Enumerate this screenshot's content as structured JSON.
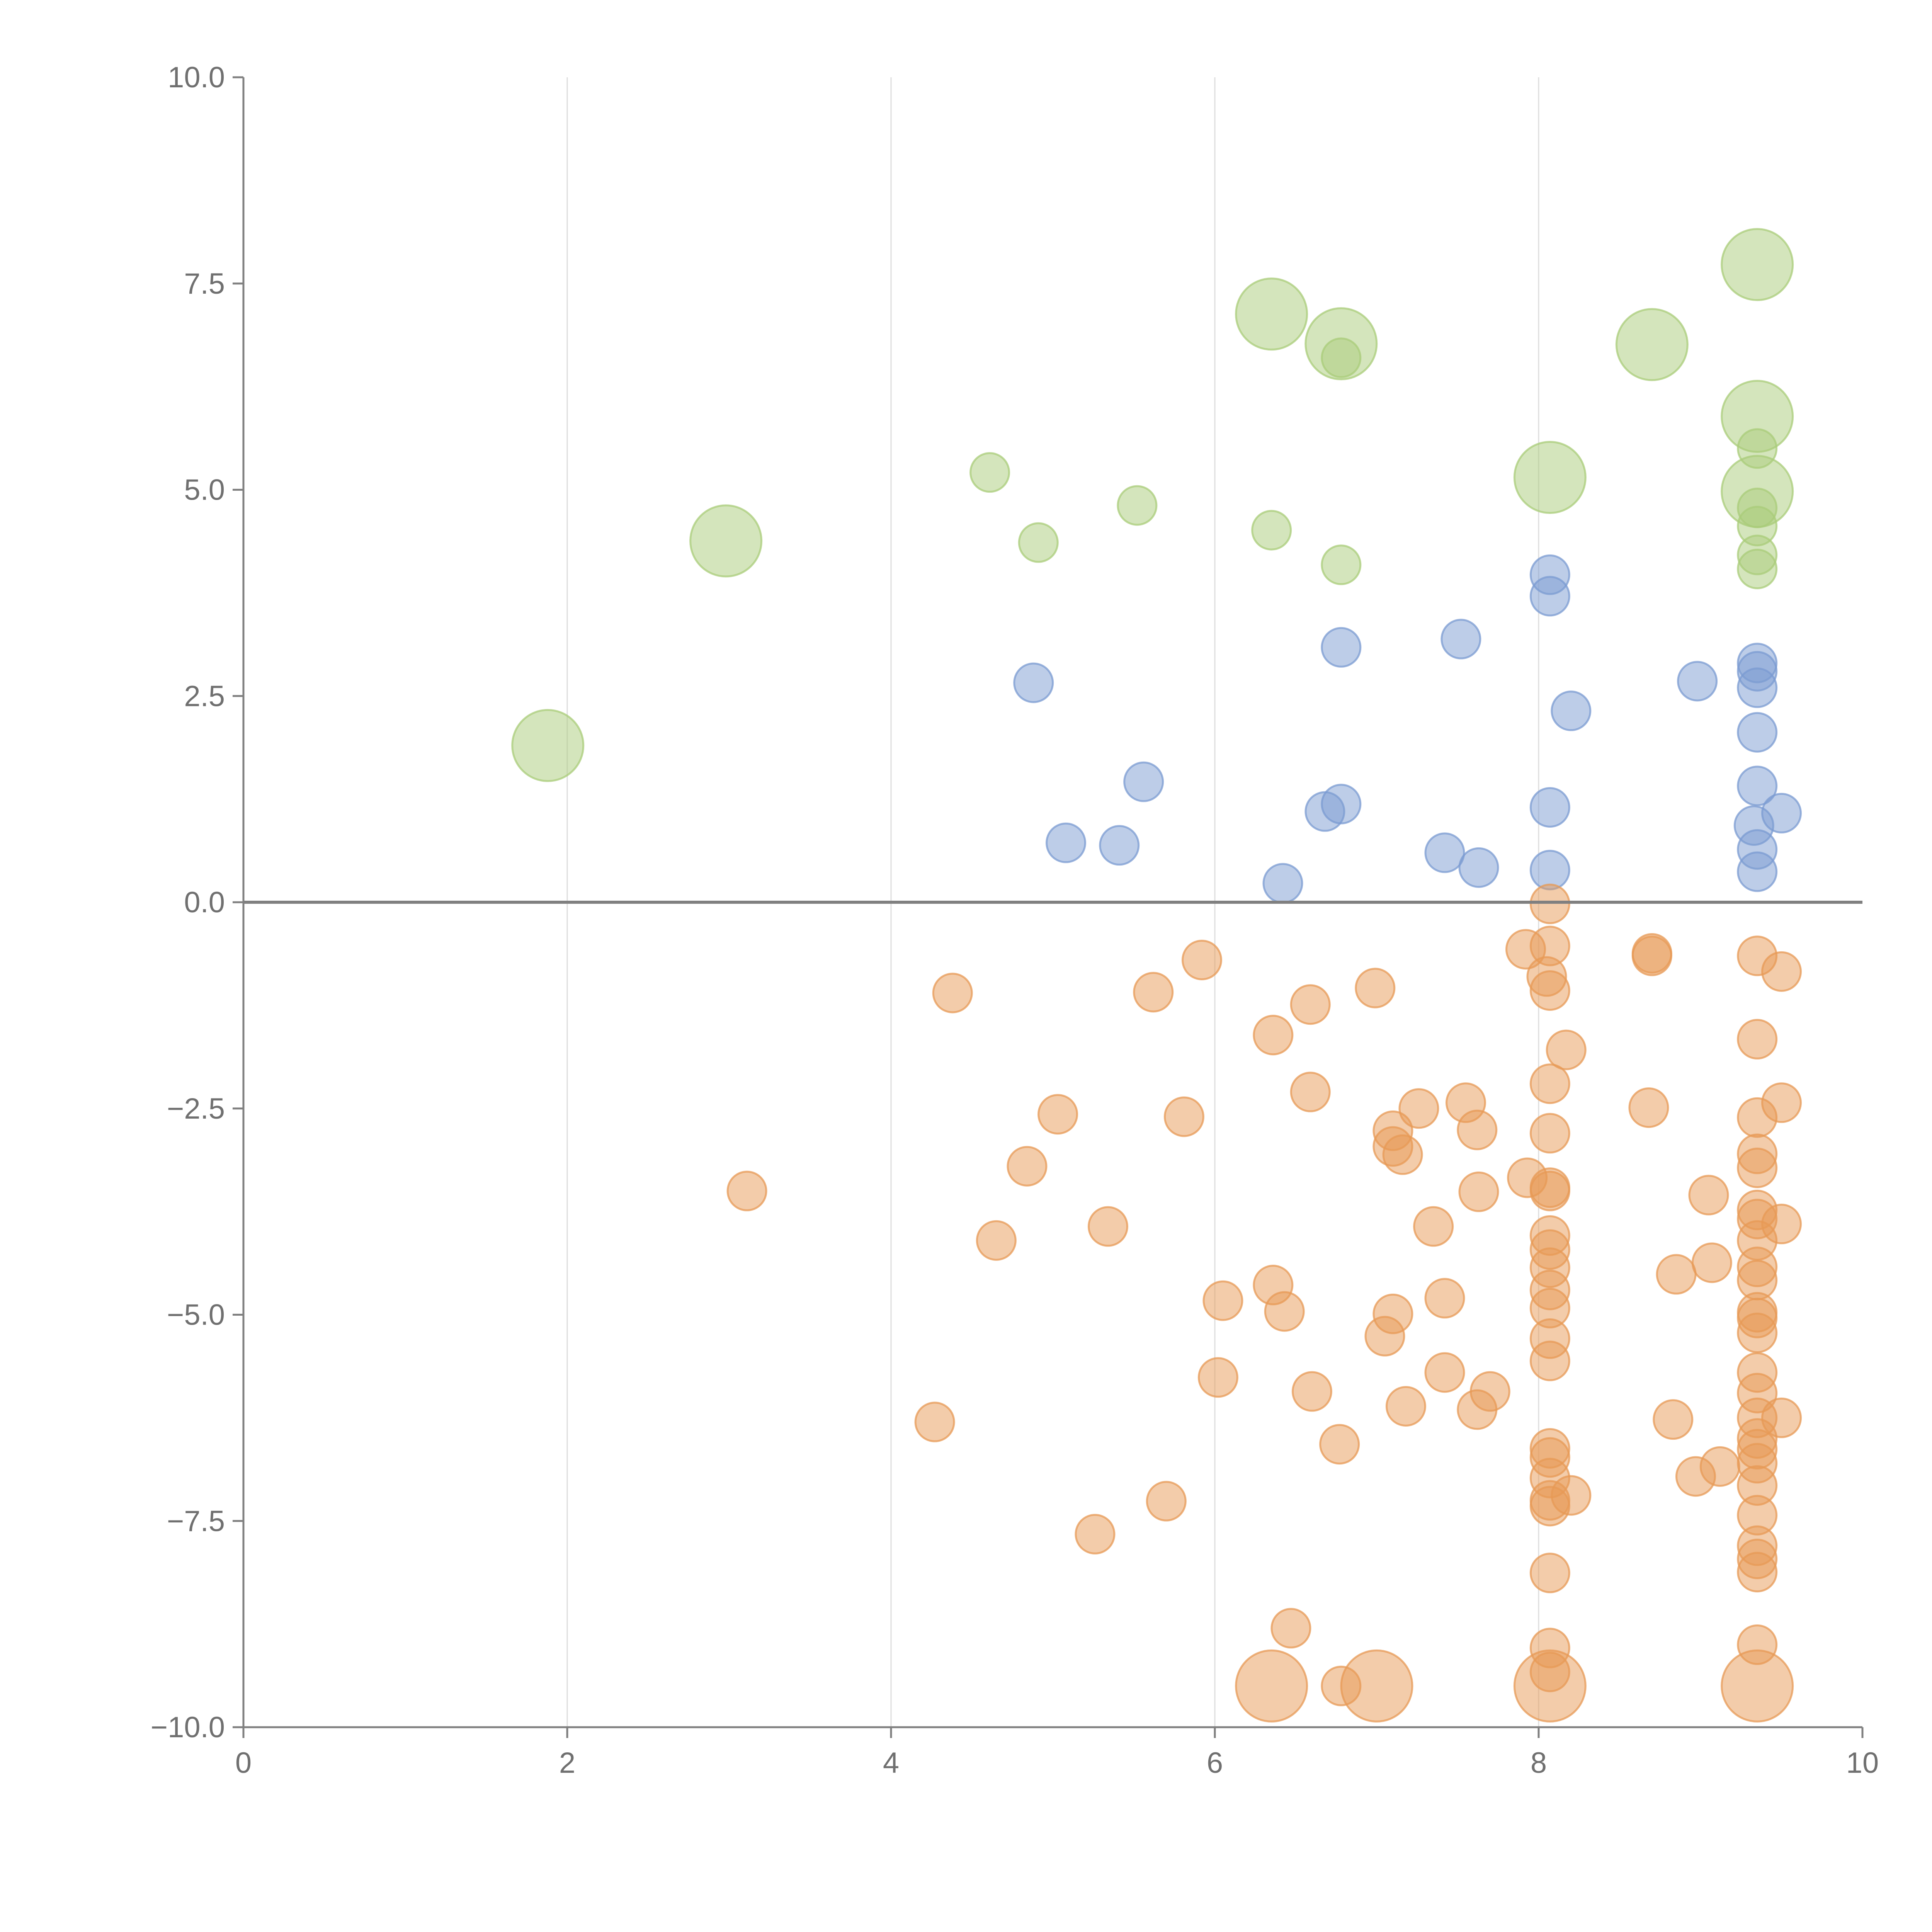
{
  "chart_data": {
    "type": "scatter",
    "title": "",
    "xlabel": "",
    "ylabel": "",
    "xlim": [
      0,
      10
    ],
    "ylim": [
      -10,
      10
    ],
    "x_ticks": [
      "0",
      "2",
      "4",
      "6",
      "8",
      "10"
    ],
    "y_ticks": [
      "10.0",
      "7.5",
      "5.0",
      "2.5",
      "0.0",
      "−2.5",
      "−5.0",
      "−7.5",
      "−10.0"
    ],
    "x_grid": true,
    "y_grid": false,
    "zero_line": true,
    "colors": {
      "green": "#a9cc7a",
      "blue": "#7b9bd1",
      "orange": "#e79a55"
    },
    "series": [
      {
        "color": "green",
        "points": [
          [
            1.88,
            1.9,
            "large"
          ],
          [
            2.98,
            4.38,
            "large"
          ],
          [
            4.61,
            5.21,
            "small"
          ],
          [
            4.91,
            4.36,
            "small"
          ],
          [
            5.52,
            4.81,
            "small"
          ],
          [
            6.35,
            4.51,
            "small"
          ],
          [
            6.35,
            7.13,
            "large"
          ],
          [
            6.78,
            6.77,
            "large"
          ],
          [
            6.78,
            6.6,
            "small"
          ],
          [
            6.78,
            4.09,
            "small"
          ],
          [
            8.07,
            5.15,
            "large"
          ],
          [
            8.7,
            6.76,
            "large"
          ],
          [
            9.35,
            7.73,
            "large"
          ],
          [
            9.35,
            5.89,
            "large"
          ],
          [
            9.35,
            4.98,
            "large"
          ],
          [
            9.35,
            4.78,
            "small"
          ],
          [
            9.35,
            4.56,
            "small"
          ],
          [
            9.35,
            4.21,
            "small"
          ],
          [
            9.35,
            4.04,
            "small"
          ],
          [
            9.35,
            5.5,
            "small"
          ]
        ]
      },
      {
        "color": "blue",
        "points": [
          [
            4.88,
            2.66,
            "small"
          ],
          [
            5.08,
            0.72,
            "small"
          ],
          [
            5.41,
            0.69,
            "small"
          ],
          [
            5.56,
            1.46,
            "small"
          ],
          [
            6.42,
            0.23,
            "small"
          ],
          [
            6.68,
            1.1,
            "small"
          ],
          [
            6.78,
            1.19,
            "small"
          ],
          [
            6.78,
            3.09,
            "small"
          ],
          [
            7.42,
            0.6,
            "small"
          ],
          [
            7.52,
            3.19,
            "small"
          ],
          [
            7.63,
            0.42,
            "small"
          ],
          [
            8.07,
            3.97,
            "small"
          ],
          [
            8.07,
            3.71,
            "small"
          ],
          [
            8.07,
            1.15,
            "small"
          ],
          [
            8.07,
            0.39,
            "small"
          ],
          [
            8.2,
            2.32,
            "small"
          ],
          [
            8.98,
            2.68,
            "small"
          ],
          [
            9.35,
            2.9,
            "small"
          ],
          [
            9.35,
            2.8,
            "small"
          ],
          [
            9.35,
            2.6,
            "small"
          ],
          [
            9.35,
            2.06,
            "small"
          ],
          [
            9.35,
            1.41,
            "small"
          ],
          [
            9.33,
            0.93,
            "small"
          ],
          [
            9.35,
            0.64,
            "small"
          ],
          [
            9.35,
            0.37,
            "small"
          ],
          [
            9.5,
            1.08,
            "small"
          ]
        ]
      },
      {
        "color": "orange",
        "points": [
          [
            3.11,
            -3.5,
            "small"
          ],
          [
            4.27,
            -6.3,
            "small"
          ],
          [
            4.38,
            -1.1,
            "small"
          ],
          [
            4.65,
            -4.1,
            "small"
          ],
          [
            4.84,
            -3.2,
            "small"
          ],
          [
            5.03,
            -2.57,
            "small"
          ],
          [
            5.26,
            -7.66,
            "small"
          ],
          [
            5.34,
            -3.93,
            "small"
          ],
          [
            5.62,
            -1.09,
            "small"
          ],
          [
            5.7,
            -7.26,
            "small"
          ],
          [
            5.81,
            -2.6,
            "small"
          ],
          [
            5.92,
            -0.7,
            "small"
          ],
          [
            6.02,
            -5.76,
            "small"
          ],
          [
            6.05,
            -4.83,
            "small"
          ],
          [
            6.36,
            -1.61,
            "small"
          ],
          [
            6.36,
            -4.64,
            "small"
          ],
          [
            6.43,
            -4.96,
            "small"
          ],
          [
            6.35,
            -9.5,
            "large"
          ],
          [
            6.47,
            -8.8,
            "small"
          ],
          [
            6.59,
            -1.24,
            "small"
          ],
          [
            6.59,
            -2.3,
            "small"
          ],
          [
            6.6,
            -5.93,
            "small"
          ],
          [
            6.77,
            -6.57,
            "small"
          ],
          [
            6.78,
            -9.5,
            "small"
          ],
          [
            6.99,
            -1.04,
            "small"
          ],
          [
            7.0,
            -9.5,
            "large"
          ],
          [
            7.05,
            -5.26,
            "small"
          ],
          [
            7.1,
            -2.77,
            "small"
          ],
          [
            7.1,
            -2.96,
            "small"
          ],
          [
            7.1,
            -4.99,
            "small"
          ],
          [
            7.16,
            -3.06,
            "small"
          ],
          [
            7.18,
            -6.11,
            "small"
          ],
          [
            7.26,
            -2.5,
            "small"
          ],
          [
            7.35,
            -3.93,
            "small"
          ],
          [
            7.42,
            -4.8,
            "small"
          ],
          [
            7.42,
            -5.7,
            "small"
          ],
          [
            7.55,
            -2.43,
            "small"
          ],
          [
            7.62,
            -2.76,
            "small"
          ],
          [
            7.63,
            -3.51,
            "small"
          ],
          [
            7.62,
            -6.15,
            "small"
          ],
          [
            7.7,
            -5.93,
            "small"
          ],
          [
            7.92,
            -0.57,
            "small"
          ],
          [
            7.93,
            -3.34,
            "small"
          ],
          [
            8.07,
            -0.02,
            "small"
          ],
          [
            8.07,
            -0.53,
            "small"
          ],
          [
            8.05,
            -0.9,
            "small"
          ],
          [
            8.07,
            -1.07,
            "small"
          ],
          [
            8.07,
            -2.2,
            "small"
          ],
          [
            8.07,
            -2.8,
            "small"
          ],
          [
            8.07,
            -3.46,
            "small"
          ],
          [
            8.07,
            -3.5,
            "small"
          ],
          [
            8.07,
            -4.04,
            "small"
          ],
          [
            8.07,
            -4.21,
            "small"
          ],
          [
            8.07,
            -4.43,
            "small"
          ],
          [
            8.07,
            -4.7,
            "small"
          ],
          [
            8.07,
            -4.92,
            "small"
          ],
          [
            8.07,
            -5.29,
            "small"
          ],
          [
            8.07,
            -5.56,
            "small"
          ],
          [
            8.07,
            -6.62,
            "small"
          ],
          [
            8.07,
            -6.73,
            "small"
          ],
          [
            8.07,
            -6.98,
            "small"
          ],
          [
            8.07,
            -7.25,
            "small"
          ],
          [
            8.07,
            -7.32,
            "small"
          ],
          [
            8.07,
            -8.13,
            "small"
          ],
          [
            8.07,
            -9.04,
            "small"
          ],
          [
            8.07,
            -9.33,
            "small"
          ],
          [
            8.07,
            -9.5,
            "large"
          ],
          [
            8.17,
            -1.79,
            "small"
          ],
          [
            8.2,
            -7.19,
            "small"
          ],
          [
            8.7,
            -0.62,
            "small"
          ],
          [
            8.7,
            -0.65,
            "small"
          ],
          [
            8.68,
            -2.49,
            "small"
          ],
          [
            8.83,
            -6.27,
            "small"
          ],
          [
            8.85,
            -4.51,
            "small"
          ],
          [
            8.97,
            -6.96,
            "small"
          ],
          [
            9.05,
            -3.55,
            "small"
          ],
          [
            9.07,
            -4.37,
            "small"
          ],
          [
            9.12,
            -6.84,
            "small"
          ],
          [
            9.35,
            -0.65,
            "small"
          ],
          [
            9.35,
            -1.66,
            "small"
          ],
          [
            9.35,
            -2.61,
            "small"
          ],
          [
            9.35,
            -3.05,
            "small"
          ],
          [
            9.35,
            -3.22,
            "small"
          ],
          [
            9.35,
            -3.73,
            "small"
          ],
          [
            9.35,
            -3.84,
            "small"
          ],
          [
            9.35,
            -4.1,
            "small"
          ],
          [
            9.35,
            -4.42,
            "small"
          ],
          [
            9.35,
            -4.58,
            "small"
          ],
          [
            9.35,
            -4.97,
            "small"
          ],
          [
            9.35,
            -5.04,
            "small"
          ],
          [
            9.35,
            -5.22,
            "small"
          ],
          [
            9.35,
            -5.7,
            "small"
          ],
          [
            9.35,
            -5.95,
            "small"
          ],
          [
            9.35,
            -6.25,
            "small"
          ],
          [
            9.35,
            -6.5,
            "small"
          ],
          [
            9.35,
            -6.63,
            "small"
          ],
          [
            9.35,
            -6.8,
            "small"
          ],
          [
            9.35,
            -7.07,
            "small"
          ],
          [
            9.35,
            -7.43,
            "small"
          ],
          [
            9.35,
            -7.8,
            "small"
          ],
          [
            9.35,
            -7.96,
            "small"
          ],
          [
            9.35,
            -8.12,
            "small"
          ],
          [
            9.35,
            -9.0,
            "small"
          ],
          [
            9.35,
            -9.5,
            "large"
          ],
          [
            9.5,
            -0.84,
            "small"
          ],
          [
            9.5,
            -2.43,
            "small"
          ],
          [
            9.5,
            -3.9,
            "small"
          ],
          [
            9.5,
            -6.25,
            "small"
          ]
        ]
      }
    ]
  }
}
